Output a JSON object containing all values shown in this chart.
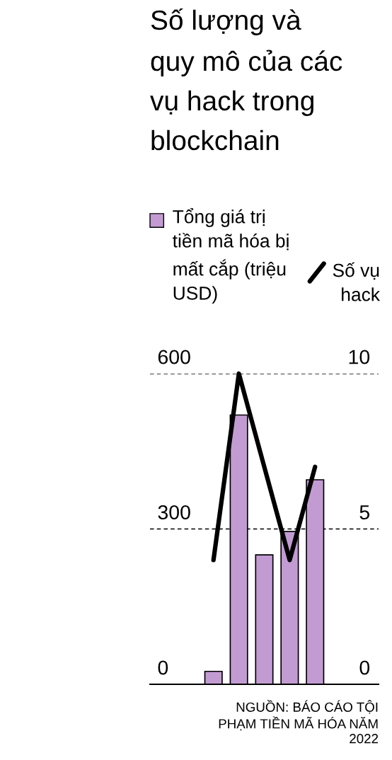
{
  "chart_data": {
    "type": "bar",
    "title": "Số lượng và quy mô của các vụ hack trong blockchain",
    "categories": [
      null,
      null,
      null,
      null,
      null,
      null,
      null,
      null,
      null
    ],
    "series": [
      {
        "name": "Tổng giá trị tiền mã hóa bị mất cắp (triệu USD)",
        "color": "#c39bd3",
        "values": [
          null,
          null,
          25,
          520,
          250,
          295,
          395,
          null,
          null
        ]
      },
      {
        "name": "Số vụ hack",
        "type": "line",
        "axis": "y2",
        "color": "#000000",
        "values": [
          null,
          null,
          4,
          10,
          7,
          4,
          7,
          null,
          null
        ]
      }
    ],
    "ylim": [
      0,
      600
    ],
    "yticks": [
      0,
      300,
      600
    ],
    "y2lim": [
      0,
      10
    ],
    "y2ticks": [
      0,
      5,
      10
    ],
    "grid": "y",
    "legend": "top",
    "line_style": "solid",
    "annotations": [
      "NGUỒN: BÁO CÁO TỘI PHẠM TIỀN MÃ HÓA NĂM 2022"
    ]
  }
}
